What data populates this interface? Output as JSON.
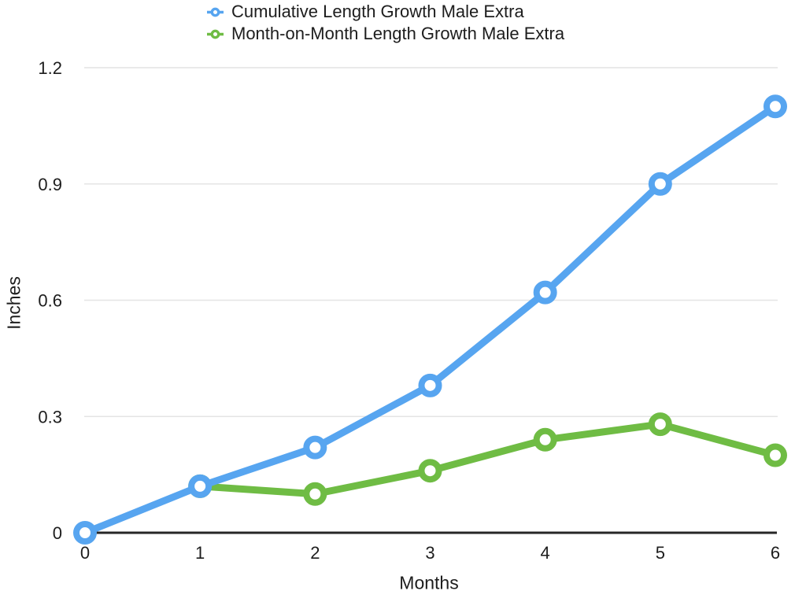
{
  "chart_data": {
    "type": "line",
    "title": "",
    "xlabel": "Months",
    "ylabel": "Inches",
    "xlim": [
      0,
      6
    ],
    "ylim": [
      0,
      1.2
    ],
    "x_ticks": [
      0,
      1,
      2,
      3,
      4,
      5,
      6
    ],
    "x_tick_labels": [
      "0",
      "1",
      "2",
      "3",
      "4",
      "5",
      "6"
    ],
    "y_ticks": [
      0,
      0.3,
      0.6,
      0.9,
      1.2
    ],
    "y_tick_labels": [
      "0",
      "0.3",
      "0.6",
      "0.9",
      "1.2"
    ],
    "grid": true,
    "legend_position": "top",
    "series": [
      {
        "name": "Cumulative Length Growth Male Extra",
        "color": "#57A5F0",
        "x": [
          0,
          1,
          2,
          3,
          4,
          5,
          6
        ],
        "values": [
          0,
          0.12,
          0.22,
          0.38,
          0.62,
          0.9,
          1.1
        ]
      },
      {
        "name": "Month-on-Month Length Growth Male Extra",
        "color": "#6FBC44",
        "x": [
          1,
          2,
          3,
          4,
          5,
          6
        ],
        "values": [
          0.12,
          0.1,
          0.16,
          0.24,
          0.28,
          0.2
        ]
      }
    ]
  },
  "colors": {
    "background": "#ffffff",
    "gridline": "#e4e4e4",
    "axis_line": "#262626",
    "text": "#1d1d1d",
    "marker_fill": "#ffffff"
  }
}
